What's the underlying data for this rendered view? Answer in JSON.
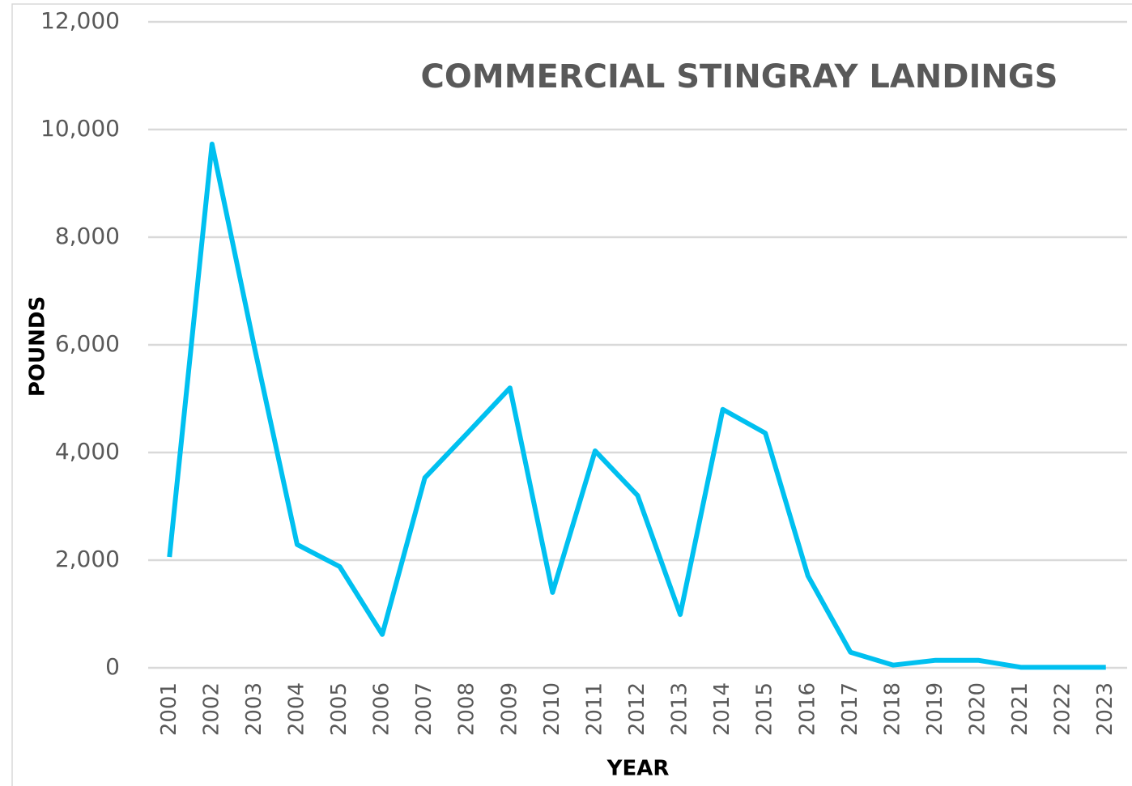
{
  "chart_data": {
    "type": "line",
    "title": "COMMERCIAL STINGRAY LANDINGS",
    "x_label": "YEAR",
    "y_label": "POUNDS",
    "categories": [
      "2001",
      "2002",
      "2003",
      "2004",
      "2005",
      "2006",
      "2007",
      "2008",
      "2009",
      "2010",
      "2011",
      "2012",
      "2013",
      "2014",
      "2015",
      "2016",
      "2017",
      "2018",
      "2019",
      "2020",
      "2021",
      "2022",
      "2023"
    ],
    "series": [
      {
        "name": "Pounds",
        "color": "#00c0f0",
        "values": [
          2060,
          9730,
          5940,
          2290,
          1880,
          620,
          3530,
          4360,
          5200,
          1400,
          4030,
          3200,
          990,
          4800,
          4360,
          1710,
          290,
          50,
          140,
          140,
          10,
          10,
          10
        ]
      }
    ],
    "ylim": [
      0,
      12000
    ],
    "yticks": [
      0,
      {
        "value": 2000,
        "label": "2,000"
      },
      {
        "value": 4000,
        "label": "4,000"
      },
      {
        "value": 6000,
        "label": "6,000"
      },
      {
        "value": 8000,
        "label": "8,000"
      },
      {
        "value": 10000,
        "label": "10,000"
      },
      {
        "value": 12000,
        "label": "12,000"
      }
    ],
    "grid": true
  }
}
